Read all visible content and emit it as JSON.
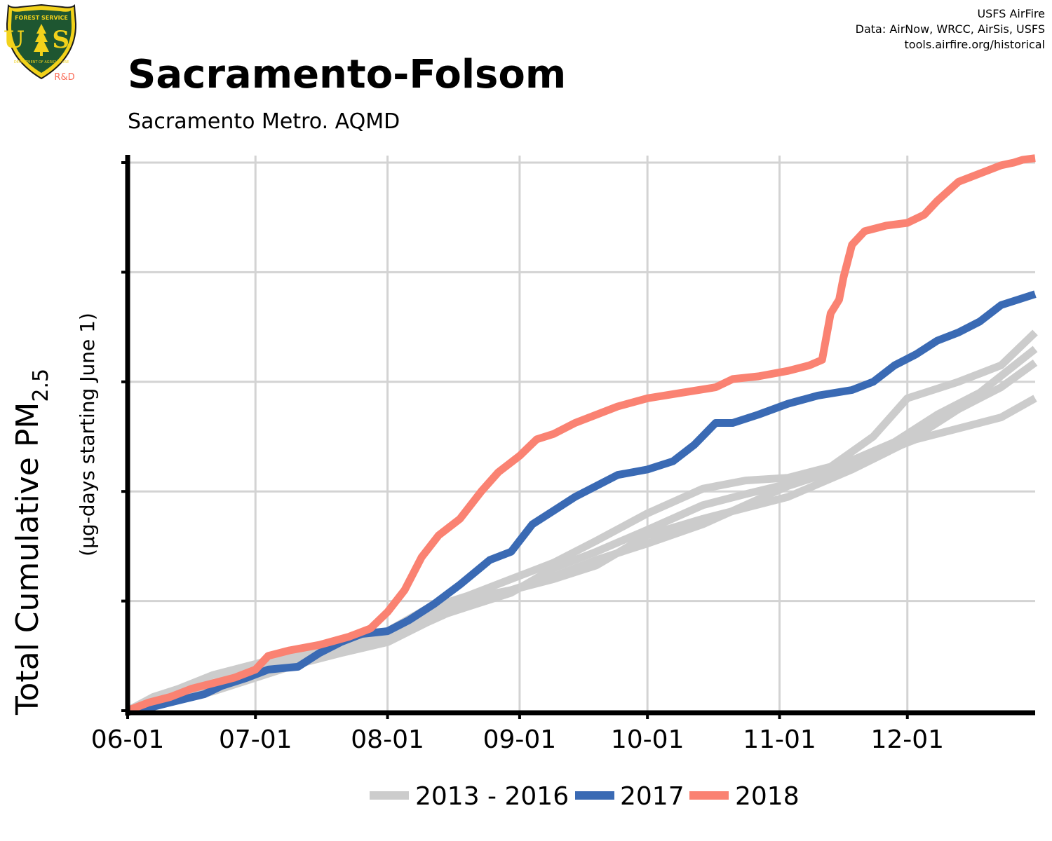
{
  "header": {
    "title": "Sacramento-Folsom",
    "subtitle": "Sacramento Metro. AQMD",
    "credits": [
      "USFS AirFire",
      "Data: AirNow, WRCC, AirSis, USFS",
      "tools.airfire.org/historical"
    ]
  },
  "logo": {
    "top_text": "FOREST SERVICE",
    "letters": "U S",
    "bottom_text": "DEPARTMENT OF AGRICULTURE",
    "tag": "R&D"
  },
  "chart_data": {
    "type": "line",
    "title": "Sacramento-Folsom",
    "subtitle": "Sacramento Metro. AQMD",
    "ylabel_main": "Total Cumulative PM",
    "ylabel_sub": "2.5",
    "ylabel_units": "(µg-days starting June 1)",
    "x_unit": "day of season (day 0 = June 1)",
    "xlim": [
      0,
      213
    ],
    "ylim": [
      0,
      100
    ],
    "y_gridlines": [
      20,
      40,
      60,
      80,
      100
    ],
    "y_ticks_labeled": false,
    "x_ticks": [
      {
        "label": "06-01",
        "day": 0
      },
      {
        "label": "07-01",
        "day": 30
      },
      {
        "label": "08-01",
        "day": 61
      },
      {
        "label": "09-01",
        "day": 92
      },
      {
        "label": "10-01",
        "day": 122
      },
      {
        "label": "11-01",
        "day": 153
      },
      {
        "label": "12-01",
        "day": 183
      }
    ],
    "grid": true,
    "legend_position": "bottom",
    "legend": [
      {
        "label": "2013 - 2016",
        "color": "#cccccc"
      },
      {
        "label": "2017",
        "color": "#3a6ab4"
      },
      {
        "label": "2018",
        "color": "#fa8272"
      }
    ],
    "series": [
      {
        "name": "",
        "group": "2013 - 2016",
        "color": "#cccccc",
        "points": [
          [
            0,
            0
          ],
          [
            6,
            2.5
          ],
          [
            12,
            4
          ],
          [
            20,
            6.5
          ],
          [
            30,
            8.5
          ],
          [
            40,
            10.5
          ],
          [
            50,
            12
          ],
          [
            61,
            14
          ],
          [
            70,
            17
          ],
          [
            80,
            20.5
          ],
          [
            90,
            22
          ],
          [
            100,
            24
          ],
          [
            110,
            26.5
          ],
          [
            122,
            32
          ],
          [
            135,
            35
          ],
          [
            145,
            37
          ],
          [
            155,
            39
          ],
          [
            170,
            44
          ],
          [
            183,
            49
          ],
          [
            195,
            55
          ],
          [
            205,
            59
          ],
          [
            213,
            63.5
          ]
        ]
      },
      {
        "name": "",
        "group": "2013 - 2016",
        "color": "#cccccc",
        "points": [
          [
            0,
            0
          ],
          [
            8,
            2
          ],
          [
            18,
            4.5
          ],
          [
            30,
            7.5
          ],
          [
            40,
            9.5
          ],
          [
            50,
            11
          ],
          [
            61,
            13.5
          ],
          [
            70,
            16.5
          ],
          [
            80,
            19
          ],
          [
            90,
            21.5
          ],
          [
            100,
            26
          ],
          [
            110,
            29
          ],
          [
            122,
            33
          ],
          [
            135,
            37.5
          ],
          [
            145,
            39.5
          ],
          [
            153,
            41
          ],
          [
            165,
            44
          ],
          [
            180,
            49
          ],
          [
            190,
            54
          ],
          [
            200,
            58
          ],
          [
            213,
            66
          ]
        ]
      },
      {
        "name": "",
        "group": "2013 - 2016",
        "color": "#cccccc",
        "points": [
          [
            0,
            0
          ],
          [
            10,
            2
          ],
          [
            20,
            4
          ],
          [
            30,
            7
          ],
          [
            40,
            10
          ],
          [
            50,
            12.5
          ],
          [
            61,
            14.5
          ],
          [
            70,
            18.5
          ],
          [
            80,
            21
          ],
          [
            90,
            24
          ],
          [
            100,
            27
          ],
          [
            110,
            31
          ],
          [
            122,
            36
          ],
          [
            135,
            40.5
          ],
          [
            145,
            42
          ],
          [
            155,
            42.5
          ],
          [
            165,
            44.5
          ],
          [
            175,
            50
          ],
          [
            183,
            57
          ],
          [
            195,
            60
          ],
          [
            205,
            63
          ],
          [
            213,
            69
          ]
        ]
      },
      {
        "name": "",
        "group": "2013 - 2016",
        "color": "#cccccc",
        "points": [
          [
            0,
            0
          ],
          [
            10,
            1.5
          ],
          [
            20,
            3.5
          ],
          [
            30,
            6
          ],
          [
            40,
            8.5
          ],
          [
            50,
            10.5
          ],
          [
            61,
            12.5
          ],
          [
            70,
            16
          ],
          [
            80,
            19.5
          ],
          [
            90,
            22
          ],
          [
            100,
            24.5
          ],
          [
            110,
            27.5
          ],
          [
            122,
            30.5
          ],
          [
            135,
            34
          ],
          [
            145,
            37.5
          ],
          [
            155,
            41
          ],
          [
            165,
            43.5
          ],
          [
            175,
            46.5
          ],
          [
            185,
            49.5
          ],
          [
            195,
            51.5
          ],
          [
            205,
            53.5
          ],
          [
            213,
            57
          ]
        ]
      },
      {
        "name": "2017",
        "group": "2017",
        "color": "#3a6ab4",
        "points": [
          [
            0,
            0
          ],
          [
            5,
            0.5
          ],
          [
            10,
            1.5
          ],
          [
            18,
            3
          ],
          [
            22,
            4.5
          ],
          [
            28,
            6
          ],
          [
            33,
            7.5
          ],
          [
            40,
            8
          ],
          [
            45,
            10.5
          ],
          [
            50,
            12.5
          ],
          [
            55,
            14
          ],
          [
            61,
            14.5
          ],
          [
            66,
            16.5
          ],
          [
            72,
            19.5
          ],
          [
            78,
            23
          ],
          [
            85,
            27.5
          ],
          [
            90,
            29
          ],
          [
            95,
            34
          ],
          [
            100,
            36.5
          ],
          [
            105,
            39
          ],
          [
            110,
            41
          ],
          [
            115,
            43
          ],
          [
            122,
            44
          ],
          [
            128,
            45.5
          ],
          [
            133,
            48.5
          ],
          [
            138,
            52.5
          ],
          [
            142,
            52.5
          ],
          [
            148,
            54
          ],
          [
            155,
            56
          ],
          [
            162,
            57.5
          ],
          [
            170,
            58.5
          ],
          [
            175,
            60
          ],
          [
            180,
            63
          ],
          [
            185,
            65
          ],
          [
            190,
            67.5
          ],
          [
            195,
            69
          ],
          [
            200,
            71
          ],
          [
            205,
            74
          ],
          [
            213,
            76
          ]
        ]
      },
      {
        "name": "2018",
        "group": "2018",
        "color": "#fa8272",
        "points": [
          [
            0,
            0
          ],
          [
            5,
            1.5
          ],
          [
            10,
            2.5
          ],
          [
            15,
            4
          ],
          [
            20,
            5
          ],
          [
            25,
            6
          ],
          [
            30,
            7.5
          ],
          [
            33,
            10
          ],
          [
            38,
            11
          ],
          [
            45,
            12
          ],
          [
            52,
            13.5
          ],
          [
            57,
            15
          ],
          [
            61,
            18
          ],
          [
            65,
            22
          ],
          [
            69,
            28
          ],
          [
            73,
            32
          ],
          [
            78,
            35
          ],
          [
            83,
            40
          ],
          [
            87,
            43.5
          ],
          [
            92,
            46.5
          ],
          [
            96,
            49.5
          ],
          [
            100,
            50.5
          ],
          [
            105,
            52.5
          ],
          [
            110,
            54
          ],
          [
            115,
            55.5
          ],
          [
            122,
            57
          ],
          [
            130,
            58
          ],
          [
            138,
            59
          ],
          [
            142,
            60.5
          ],
          [
            148,
            61
          ],
          [
            155,
            62
          ],
          [
            160,
            63
          ],
          [
            163,
            64
          ],
          [
            165,
            72.5
          ],
          [
            167,
            75
          ],
          [
            168,
            79
          ],
          [
            170,
            85
          ],
          [
            173,
            87.5
          ],
          [
            178,
            88.5
          ],
          [
            183,
            89
          ],
          [
            187,
            90.5
          ],
          [
            190,
            93
          ],
          [
            195,
            96.5
          ],
          [
            200,
            98
          ],
          [
            205,
            99.5
          ],
          [
            208,
            100
          ],
          [
            210,
            100.5
          ],
          [
            213,
            100.8
          ]
        ]
      }
    ]
  }
}
